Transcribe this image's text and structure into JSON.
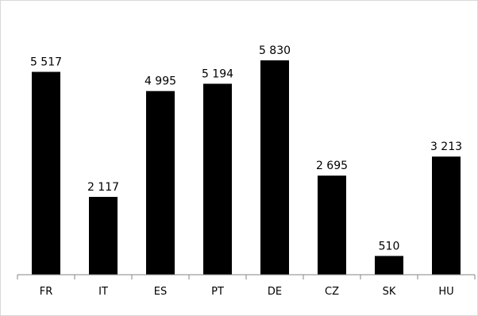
{
  "chart_data": {
    "type": "bar",
    "title": "",
    "xlabel": "",
    "ylabel": "",
    "categories": [
      "FR",
      "IT",
      "ES",
      "PT",
      "DE",
      "CZ",
      "SK",
      "HU"
    ],
    "values": [
      5517,
      2117,
      4995,
      5194,
      5830,
      2695,
      510,
      3213
    ],
    "value_labels": [
      "5 517",
      "2 117",
      "4 995",
      "5 194",
      "5 830",
      "2 695",
      "510",
      "3 213"
    ],
    "ylim": [
      0,
      6500
    ],
    "grid": false,
    "legend": "none",
    "bar_color": "#000000"
  }
}
